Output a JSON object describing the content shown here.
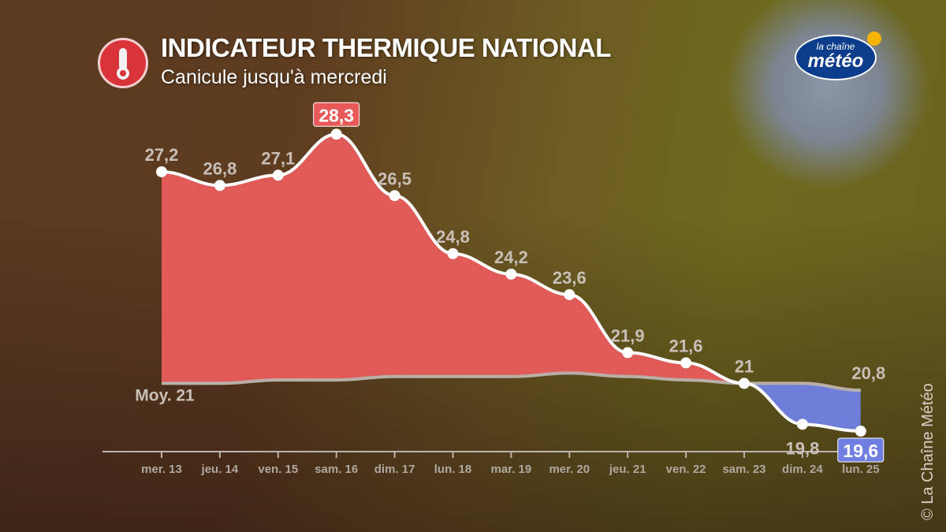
{
  "header": {
    "title": "INDICATEUR THERMIQUE NATIONAL",
    "subtitle": "Canicule jusqu'à mercredi",
    "logo_text": "la chaîne météo",
    "copyright": "© La Chaîne Météo"
  },
  "chart_data": {
    "type": "area",
    "title": "INDICATEUR THERMIQUE NATIONAL",
    "subtitle": "Canicule jusqu'à mercredi",
    "categories": [
      "mer. 13",
      "jeu. 14",
      "ven. 15",
      "sam. 16",
      "dim. 17",
      "lun. 18",
      "mar. 19",
      "mer. 20",
      "jeu. 21",
      "ven. 22",
      "sam. 23",
      "dim. 24",
      "lun. 25"
    ],
    "series": [
      {
        "name": "Indicateur thermique",
        "values": [
          27.2,
          26.8,
          27.1,
          28.3,
          26.5,
          24.8,
          24.2,
          23.6,
          21.9,
          21.6,
          21,
          19.8,
          19.6
        ],
        "labels": [
          "27,2",
          "26,8",
          "27,1",
          "28,3",
          "26,5",
          "24,8",
          "24,2",
          "23,6",
          "21,9",
          "21,6",
          "21",
          "19,8",
          "19,6"
        ],
        "color": "#e05a58"
      },
      {
        "name": "Moyenne",
        "values": [
          21.0,
          21.0,
          21.1,
          21.1,
          21.2,
          21.2,
          21.2,
          21.3,
          21.2,
          21.1,
          21.0,
          21.0,
          20.8
        ],
        "color": "#b8b0a8"
      }
    ],
    "normal_start_label": "Moy. 21",
    "normal_end_label": "20,8",
    "above_color": "#e05a58",
    "below_color": "#6f7ed8",
    "max_badge_color": "#e85a5a",
    "min_badge_color": "#6f7ee0",
    "ylim": [
      19,
      30
    ],
    "grid": false,
    "xlabel": "",
    "ylabel": ""
  }
}
